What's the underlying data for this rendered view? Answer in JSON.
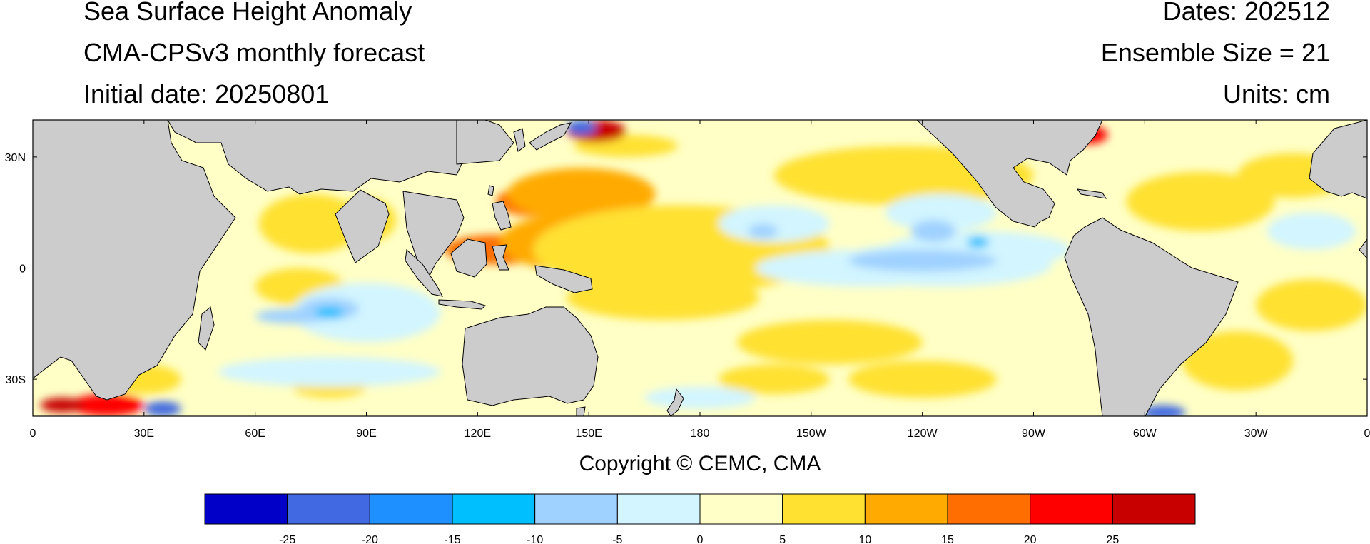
{
  "header": {
    "title": "Sea Surface Height Anomaly",
    "model": "CMA-CPSv3 monthly forecast",
    "initial_date": "Initial date: 20250801",
    "dates": "Dates: 202512",
    "ensemble": "Ensemble Size = 21",
    "units": "Units: cm"
  },
  "footer": {
    "copyright": "Copyright © CEMC, CMA"
  },
  "map": {
    "projection": "equirectangular",
    "lon_range": [
      0,
      360
    ],
    "lat_range": [
      -40,
      40
    ],
    "land_color": "#cccccc",
    "ocean_background": "#ffffc6",
    "lat_ticks": [
      {
        "lat": 30,
        "label": "30N"
      },
      {
        "lat": 0,
        "label": "0"
      },
      {
        "lat": -30,
        "label": "30S"
      }
    ],
    "lon_ticks": [
      {
        "lon": 0,
        "label": "0"
      },
      {
        "lon": 30,
        "label": "30E"
      },
      {
        "lon": 60,
        "label": "60E"
      },
      {
        "lon": 90,
        "label": "90E"
      },
      {
        "lon": 120,
        "label": "120E"
      },
      {
        "lon": 150,
        "label": "150E"
      },
      {
        "lon": 180,
        "label": "180"
      },
      {
        "lon": 210,
        "label": "150W"
      },
      {
        "lon": 240,
        "label": "120W"
      },
      {
        "lon": 270,
        "label": "90W"
      },
      {
        "lon": 300,
        "label": "60W"
      },
      {
        "lon": 330,
        "label": "30W"
      },
      {
        "lon": 360,
        "label": "0"
      }
    ]
  },
  "colorbar": {
    "colors": [
      "#0000c8",
      "#4169e1",
      "#1e90ff",
      "#00bfff",
      "#a0d2ff",
      "#d2f5ff",
      "#ffffc8",
      "#ffe132",
      "#ffaa00",
      "#ff6e00",
      "#ff0000",
      "#c80000"
    ],
    "labels": [
      "-25",
      "-20",
      "-15",
      "-10",
      "-5",
      "0",
      "5",
      "10",
      "15",
      "20",
      "25"
    ]
  },
  "anomaly_regions": [
    {
      "lon": 135,
      "lat": 18,
      "rx": 10,
      "ry": 4,
      "level": 9
    },
    {
      "lon": 152,
      "lat": 12,
      "rx": 10,
      "ry": 3,
      "level": 9
    },
    {
      "lon": 125,
      "lat": 5,
      "rx": 14,
      "ry": 4,
      "level": 9
    },
    {
      "lon": 148,
      "lat": 7,
      "rx": 22,
      "ry": 8,
      "level": 8
    },
    {
      "lon": 148,
      "lat": 20,
      "rx": 20,
      "ry": 7,
      "level": 8
    },
    {
      "lon": 175,
      "lat": 5,
      "rx": 40,
      "ry": 12,
      "level": 7
    },
    {
      "lon": 170,
      "lat": -8,
      "rx": 26,
      "ry": 6,
      "level": 7
    },
    {
      "lon": 75,
      "lat": 12,
      "rx": 14,
      "ry": 8,
      "level": 7
    },
    {
      "lon": 90,
      "lat": 13,
      "rx": 8,
      "ry": 6,
      "level": 7
    },
    {
      "lon": 72,
      "lat": -5,
      "rx": 12,
      "ry": 5,
      "level": 7
    },
    {
      "lon": 100,
      "lat": -12,
      "rx": 10,
      "ry": 5,
      "level": 7
    },
    {
      "lon": 235,
      "lat": 25,
      "rx": 35,
      "ry": 8,
      "level": 7
    },
    {
      "lon": 215,
      "lat": -20,
      "rx": 25,
      "ry": 6,
      "level": 7
    },
    {
      "lon": 240,
      "lat": -30,
      "rx": 20,
      "ry": 5,
      "level": 7
    },
    {
      "lon": 325,
      "lat": -25,
      "rx": 15,
      "ry": 8,
      "level": 7
    },
    {
      "lon": 315,
      "lat": 18,
      "rx": 20,
      "ry": 8,
      "level": 7
    },
    {
      "lon": 345,
      "lat": -10,
      "rx": 15,
      "ry": 7,
      "level": 7
    },
    {
      "lon": 80,
      "lat": -32,
      "rx": 10,
      "ry": 3,
      "level": 7
    },
    {
      "lon": 30,
      "lat": -30,
      "rx": 10,
      "ry": 4,
      "level": 7
    },
    {
      "lon": 160,
      "lat": 33,
      "rx": 14,
      "ry": 3,
      "level": 7
    },
    {
      "lon": 340,
      "lat": 25,
      "rx": 15,
      "ry": 6,
      "level": 7
    },
    {
      "lon": 200,
      "lat": -30,
      "rx": 15,
      "ry": 4,
      "level": 7
    },
    {
      "lon": 225,
      "lat": 0,
      "rx": 30,
      "ry": 5,
      "level": 5
    },
    {
      "lon": 245,
      "lat": 1,
      "rx": 30,
      "ry": 6,
      "level": 5
    },
    {
      "lon": 255,
      "lat": 5,
      "rx": 25,
      "ry": 5,
      "level": 5
    },
    {
      "lon": 200,
      "lat": 12,
      "rx": 15,
      "ry": 5,
      "level": 5
    },
    {
      "lon": 90,
      "lat": -12,
      "rx": 20,
      "ry": 8,
      "level": 5
    },
    {
      "lon": 80,
      "lat": -28,
      "rx": 30,
      "ry": 4,
      "level": 5
    },
    {
      "lon": 245,
      "lat": 15,
      "rx": 15,
      "ry": 5,
      "level": 5
    },
    {
      "lon": 300,
      "lat": -20,
      "rx": 12,
      "ry": 6,
      "level": 5
    },
    {
      "lon": 345,
      "lat": 10,
      "rx": 12,
      "ry": 5,
      "level": 5
    },
    {
      "lon": 180,
      "lat": -35,
      "rx": 15,
      "ry": 3,
      "level": 5
    },
    {
      "lon": 240,
      "lat": 2,
      "rx": 20,
      "ry": 3,
      "level": 4
    },
    {
      "lon": 243,
      "lat": 10,
      "rx": 6,
      "ry": 3,
      "level": 4
    },
    {
      "lon": 80,
      "lat": -11,
      "rx": 8,
      "ry": 3,
      "level": 4
    },
    {
      "lon": 70,
      "lat": -13,
      "rx": 10,
      "ry": 2,
      "level": 4
    },
    {
      "lon": 197,
      "lat": 10,
      "rx": 4,
      "ry": 2,
      "level": 4
    },
    {
      "lon": 80,
      "lat": -12,
      "rx": 4,
      "ry": 1.5,
      "level": 3
    },
    {
      "lon": 255,
      "lat": 7,
      "rx": 3,
      "ry": 1.5,
      "level": 3
    },
    {
      "lon": 152,
      "lat": 37,
      "rx": 8,
      "ry": 3,
      "level": 11
    },
    {
      "lon": 148,
      "lat": 38,
      "rx": 4,
      "ry": 2,
      "level": 1
    },
    {
      "lon": 285,
      "lat": 36,
      "rx": 5,
      "ry": 2.5,
      "level": 10
    },
    {
      "lon": 275,
      "lat": 37,
      "rx": 3,
      "ry": 2,
      "level": 2
    },
    {
      "lon": 20,
      "lat": -37,
      "rx": 10,
      "ry": 3,
      "level": 10
    },
    {
      "lon": 8,
      "lat": -37,
      "rx": 6,
      "ry": 2,
      "level": 11
    },
    {
      "lon": 35,
      "lat": -38,
      "rx": 5,
      "ry": 2,
      "level": 1
    },
    {
      "lon": 305,
      "lat": -39,
      "rx": 6,
      "ry": 2,
      "level": 1
    }
  ]
}
